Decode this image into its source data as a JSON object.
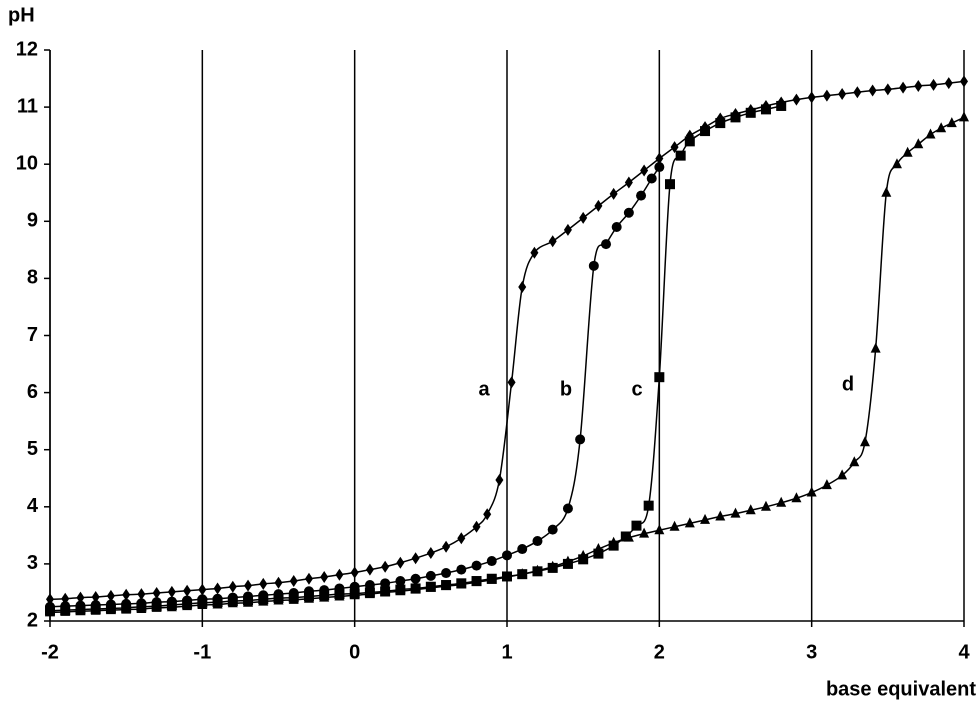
{
  "chart_data": {
    "type": "line",
    "y_label": "pH",
    "x_label": "base equivalent",
    "xlim": [
      -2,
      4
    ],
    "xticks": [
      -2,
      -1,
      0,
      1,
      2,
      3,
      4
    ],
    "ylim": [
      2,
      12
    ],
    "yticks": [
      2,
      3,
      4,
      5,
      6,
      7,
      8,
      9,
      10,
      11,
      12
    ],
    "grid": "x",
    "series": [
      {
        "name": "a",
        "color": "#000000",
        "marker": "diamond",
        "x": [
          -2,
          -1.9,
          -1.8,
          -1.7,
          -1.6,
          -1.5,
          -1.4,
          -1.3,
          -1.2,
          -1.1,
          -1,
          -0.9,
          -0.8,
          -0.7,
          -0.6,
          -0.5,
          -0.4,
          -0.3,
          -0.2,
          -0.1,
          0,
          0.1,
          0.2,
          0.3,
          0.4,
          0.5,
          0.6,
          0.7,
          0.8,
          0.87,
          0.95,
          1.03,
          1.1,
          1.18,
          1.3,
          1.4,
          1.5,
          1.6,
          1.7,
          1.8,
          1.9,
          2,
          2.1,
          2.2,
          2.3,
          2.4,
          2.5,
          2.6,
          2.7,
          2.8,
          2.9,
          3,
          3.1,
          3.2,
          3.3,
          3.4,
          3.5,
          3.6,
          3.7,
          3.8,
          3.9,
          4
        ],
        "values": [
          2.38,
          2.39,
          2.41,
          2.42,
          2.44,
          2.46,
          2.47,
          2.49,
          2.51,
          2.53,
          2.55,
          2.57,
          2.6,
          2.62,
          2.65,
          2.67,
          2.7,
          2.74,
          2.77,
          2.81,
          2.85,
          2.9,
          2.95,
          3.02,
          3.1,
          3.19,
          3.3,
          3.45,
          3.65,
          3.87,
          4.47,
          6.18,
          7.85,
          8.45,
          8.65,
          8.85,
          9.06,
          9.27,
          9.48,
          9.68,
          9.89,
          10.1,
          10.3,
          10.5,
          10.65,
          10.8,
          10.88,
          10.95,
          11.02,
          11.08,
          11.13,
          11.17,
          11.2,
          11.23,
          11.26,
          11.29,
          11.31,
          11.34,
          11.37,
          11.39,
          11.42,
          11.45
        ]
      },
      {
        "name": "b",
        "color": "#000000",
        "marker": "circle",
        "x": [
          -2,
          -1.9,
          -1.8,
          -1.7,
          -1.6,
          -1.5,
          -1.4,
          -1.3,
          -1.2,
          -1.1,
          -1,
          -0.9,
          -0.8,
          -0.7,
          -0.6,
          -0.5,
          -0.4,
          -0.3,
          -0.2,
          -0.1,
          0,
          0.1,
          0.2,
          0.3,
          0.4,
          0.5,
          0.6,
          0.7,
          0.8,
          0.9,
          1,
          1.1,
          1.2,
          1.3,
          1.4,
          1.48,
          1.57,
          1.65,
          1.72,
          1.8,
          1.88,
          1.95,
          2
        ],
        "values": [
          2.25,
          2.26,
          2.27,
          2.28,
          2.29,
          2.3,
          2.31,
          2.33,
          2.34,
          2.36,
          2.38,
          2.39,
          2.41,
          2.43,
          2.45,
          2.47,
          2.49,
          2.52,
          2.54,
          2.57,
          2.6,
          2.63,
          2.66,
          2.7,
          2.74,
          2.79,
          2.84,
          2.9,
          2.97,
          3.05,
          3.15,
          3.26,
          3.4,
          3.6,
          3.97,
          5.18,
          8.22,
          8.6,
          8.9,
          9.15,
          9.45,
          9.75,
          9.95
        ]
      },
      {
        "name": "c",
        "color": "#000000",
        "marker": "square",
        "x": [
          -2,
          -1.9,
          -1.8,
          -1.7,
          -1.6,
          -1.5,
          -1.4,
          -1.3,
          -1.2,
          -1.1,
          -1,
          -0.9,
          -0.8,
          -0.7,
          -0.6,
          -0.5,
          -0.4,
          -0.3,
          -0.2,
          -0.1,
          0,
          0.1,
          0.2,
          0.3,
          0.4,
          0.5,
          0.6,
          0.7,
          0.8,
          0.9,
          1,
          1.1,
          1.2,
          1.3,
          1.4,
          1.5,
          1.6,
          1.7,
          1.78,
          1.85,
          1.93,
          2,
          2.07,
          2.14,
          2.2,
          2.3,
          2.4,
          2.5,
          2.6,
          2.7,
          2.8
        ],
        "values": [
          2.18,
          2.19,
          2.2,
          2.21,
          2.22,
          2.23,
          2.25,
          2.26,
          2.28,
          2.3,
          2.32,
          2.33,
          2.35,
          2.36,
          2.38,
          2.4,
          2.41,
          2.43,
          2.45,
          2.47,
          2.48,
          2.5,
          2.52,
          2.55,
          2.57,
          2.6,
          2.63,
          2.66,
          2.7,
          2.74,
          2.78,
          2.82,
          2.87,
          2.93,
          3,
          3.08,
          3.18,
          3.32,
          3.48,
          3.67,
          4.02,
          6.27,
          9.65,
          10.15,
          10.4,
          10.58,
          10.72,
          10.82,
          10.9,
          10.96,
          11.02
        ]
      },
      {
        "name": "d",
        "color": "#000000",
        "marker": "triangle",
        "x": [
          -2,
          -1.9,
          -1.8,
          -1.7,
          -1.6,
          -1.5,
          -1.4,
          -1.3,
          -1.2,
          -1.1,
          -1,
          -0.9,
          -0.8,
          -0.7,
          -0.6,
          -0.5,
          -0.4,
          -0.3,
          -0.2,
          -0.1,
          0,
          0.1,
          0.2,
          0.3,
          0.4,
          0.5,
          0.6,
          0.7,
          0.8,
          0.9,
          1,
          1.1,
          1.2,
          1.3,
          1.4,
          1.5,
          1.6,
          1.7,
          1.8,
          1.9,
          2,
          2.1,
          2.2,
          2.3,
          2.4,
          2.5,
          2.6,
          2.7,
          2.8,
          2.9,
          3,
          3.1,
          3.2,
          3.28,
          3.35,
          3.42,
          3.49,
          3.56,
          3.63,
          3.7,
          3.78,
          3.85,
          3.92,
          4
        ],
        "values": [
          2.15,
          2.16,
          2.17,
          2.18,
          2.19,
          2.2,
          2.21,
          2.23,
          2.24,
          2.26,
          2.28,
          2.29,
          2.31,
          2.32,
          2.34,
          2.36,
          2.37,
          2.39,
          2.41,
          2.43,
          2.45,
          2.47,
          2.5,
          2.52,
          2.55,
          2.58,
          2.61,
          2.64,
          2.68,
          2.72,
          2.77,
          2.82,
          2.88,
          2.95,
          3.04,
          3.14,
          3.26,
          3.37,
          3.46,
          3.53,
          3.59,
          3.65,
          3.71,
          3.77,
          3.83,
          3.88,
          3.94,
          4,
          4.07,
          4.15,
          4.25,
          4.38,
          4.55,
          4.78,
          5.13,
          6.77,
          9.5,
          10,
          10.2,
          10.35,
          10.52,
          10.63,
          10.72,
          10.82
        ]
      }
    ]
  }
}
